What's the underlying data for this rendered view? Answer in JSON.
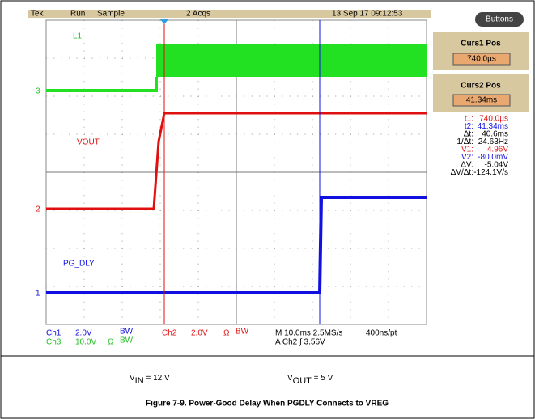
{
  "scope": {
    "status": {
      "brand": "Tek",
      "run": "Run",
      "mode": "Sample",
      "acqs": "2 Acqs",
      "date": "13 Sep 17 09:12:53"
    },
    "button": "Buttons",
    "curs1": {
      "label": "Curs1 Pos",
      "value": "740.0µs"
    },
    "curs2": {
      "label": "Curs2 Pos",
      "value": "41.34ms"
    },
    "readouts": [
      [
        "t1:",
        "740.0µs"
      ],
      [
        "t2:",
        "41.34ms"
      ],
      [
        "Δt:",
        "40.6ms"
      ],
      [
        "1/Δt:",
        "24.63Hz"
      ],
      [
        "V1:",
        "4.96V"
      ],
      [
        "V2:",
        "-80.0mV"
      ],
      [
        "ΔV:",
        "-5.04V"
      ],
      [
        "ΔV/Δt:",
        "-124.1V/s"
      ]
    ],
    "traces": {
      "l1": "L1",
      "vout": "VOUT",
      "pg": "PG_DLY"
    },
    "markers": [
      "3",
      "2",
      "1"
    ],
    "footer": {
      "ch1": [
        "Ch1",
        "2.0V",
        "BW"
      ],
      "ch3": [
        "Ch3",
        "10.0V",
        "Ω",
        "BW"
      ],
      "ch2": [
        "Ch2",
        "2.0V",
        "Ω",
        "BW"
      ],
      "time": "M 10.0ms 2.5MS/s",
      "pt": "400ns/pt",
      "trig": "A Ch2 ∫ 3.56V"
    }
  },
  "conditions": {
    "vin": {
      "v": "V",
      "sub": "IN",
      "rest": " = 12 V"
    },
    "vout": {
      "v": "V",
      "sub": "OUT",
      "rest": " = 5 V"
    }
  },
  "caption": "Figure 7-9. Power-Good Delay When PGDLY Connects to VREG"
}
